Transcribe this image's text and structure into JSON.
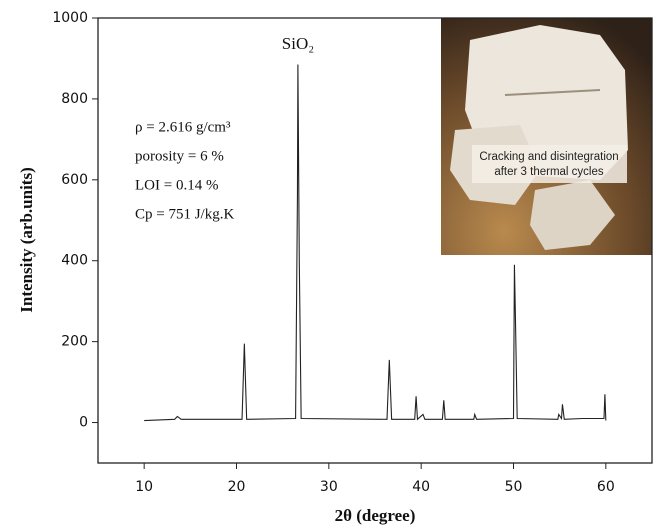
{
  "chart_data": {
    "type": "line",
    "x_label": "2θ (degree)",
    "y_label": "Intensity (arb.units)",
    "xlim": [
      5,
      65
    ],
    "ylim": [
      -100,
      1000
    ],
    "xticks": [
      10,
      20,
      30,
      40,
      50,
      60
    ],
    "yticks": [
      0,
      200,
      400,
      600,
      800,
      1000
    ],
    "color": "#222222",
    "x": [
      10,
      13.3,
      13.6,
      14,
      20.6,
      20.85,
      21.1,
      26.4,
      26.6,
      26.65,
      26.8,
      27,
      36.3,
      36.55,
      36.8,
      39.3,
      39.45,
      39.6,
      40.2,
      40.4,
      42.3,
      42.45,
      42.6,
      45.7,
      45.8,
      46,
      50,
      50.1,
      50.2,
      50.4,
      54.8,
      54.9,
      55.2,
      55.3,
      55.5,
      57.5,
      59.8,
      59.9,
      60
    ],
    "values": [
      5,
      8,
      15,
      8,
      8,
      195,
      8,
      10,
      560,
      885,
      400,
      10,
      8,
      155,
      8,
      8,
      65,
      8,
      20,
      8,
      8,
      55,
      8,
      8,
      20,
      8,
      10,
      390,
      270,
      10,
      8,
      20,
      10,
      45,
      8,
      10,
      10,
      70,
      5
    ],
    "peak_label": "SiO₂",
    "properties": [
      "ρ = 2.616 g/cm³",
      "porosity = 6 %",
      "LOI = 0.14 %",
      "Cp = 751 J/kg.K"
    ],
    "photo_caption": [
      "Cracking and disintegration",
      "after 3 thermal cycles"
    ]
  }
}
